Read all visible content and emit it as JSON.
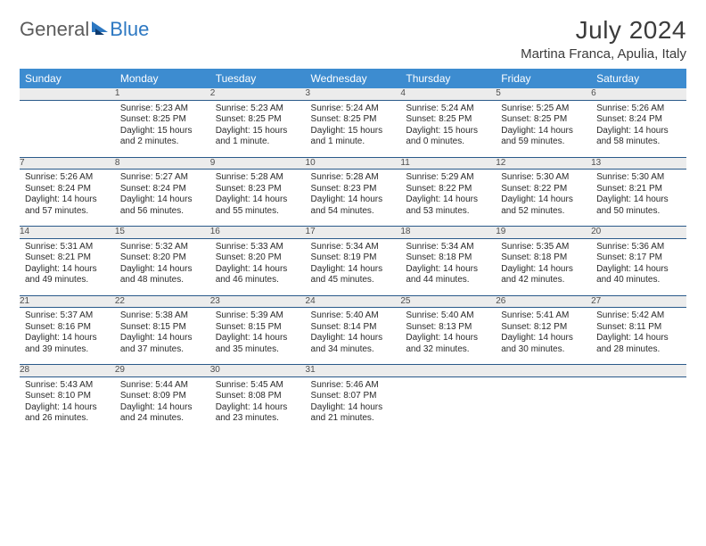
{
  "logo": {
    "word1": "General",
    "word2": "Blue"
  },
  "title": {
    "month_year": "July 2024",
    "location": "Martina Franca, Apulia, Italy"
  },
  "weekdays": [
    "Sunday",
    "Monday",
    "Tuesday",
    "Wednesday",
    "Thursday",
    "Friday",
    "Saturday"
  ],
  "style": {
    "page_bg": "#ffffff",
    "header_bg": "#3d8cd0",
    "header_text": "#ffffff",
    "daynum_bg": "#ececec",
    "daynum_text": "#4f4f4f",
    "rule_color": "#2a5a8a",
    "body_text": "#2a2a2a",
    "title_text": "#3b3b3b",
    "logo_gray": "#5c5c5c",
    "logo_blue": "#2d78c2",
    "month_fontsize_pt": 21,
    "location_fontsize_pt": 11,
    "weekday_fontsize_pt": 9,
    "cell_fontsize_pt": 7.5,
    "daynum_fontsize_pt": 8.5,
    "columns": 7,
    "rows": 5
  },
  "weeks": [
    {
      "nums": [
        "",
        "1",
        "2",
        "3",
        "4",
        "5",
        "6"
      ],
      "cells": [
        "",
        "Sunrise: 5:23 AM\nSunset: 8:25 PM\nDaylight: 15 hours and 2 minutes.",
        "Sunrise: 5:23 AM\nSunset: 8:25 PM\nDaylight: 15 hours and 1 minute.",
        "Sunrise: 5:24 AM\nSunset: 8:25 PM\nDaylight: 15 hours and 1 minute.",
        "Sunrise: 5:24 AM\nSunset: 8:25 PM\nDaylight: 15 hours and 0 minutes.",
        "Sunrise: 5:25 AM\nSunset: 8:25 PM\nDaylight: 14 hours and 59 minutes.",
        "Sunrise: 5:26 AM\nSunset: 8:24 PM\nDaylight: 14 hours and 58 minutes."
      ]
    },
    {
      "nums": [
        "7",
        "8",
        "9",
        "10",
        "11",
        "12",
        "13"
      ],
      "cells": [
        "Sunrise: 5:26 AM\nSunset: 8:24 PM\nDaylight: 14 hours and 57 minutes.",
        "Sunrise: 5:27 AM\nSunset: 8:24 PM\nDaylight: 14 hours and 56 minutes.",
        "Sunrise: 5:28 AM\nSunset: 8:23 PM\nDaylight: 14 hours and 55 minutes.",
        "Sunrise: 5:28 AM\nSunset: 8:23 PM\nDaylight: 14 hours and 54 minutes.",
        "Sunrise: 5:29 AM\nSunset: 8:22 PM\nDaylight: 14 hours and 53 minutes.",
        "Sunrise: 5:30 AM\nSunset: 8:22 PM\nDaylight: 14 hours and 52 minutes.",
        "Sunrise: 5:30 AM\nSunset: 8:21 PM\nDaylight: 14 hours and 50 minutes."
      ]
    },
    {
      "nums": [
        "14",
        "15",
        "16",
        "17",
        "18",
        "19",
        "20"
      ],
      "cells": [
        "Sunrise: 5:31 AM\nSunset: 8:21 PM\nDaylight: 14 hours and 49 minutes.",
        "Sunrise: 5:32 AM\nSunset: 8:20 PM\nDaylight: 14 hours and 48 minutes.",
        "Sunrise: 5:33 AM\nSunset: 8:20 PM\nDaylight: 14 hours and 46 minutes.",
        "Sunrise: 5:34 AM\nSunset: 8:19 PM\nDaylight: 14 hours and 45 minutes.",
        "Sunrise: 5:34 AM\nSunset: 8:18 PM\nDaylight: 14 hours and 44 minutes.",
        "Sunrise: 5:35 AM\nSunset: 8:18 PM\nDaylight: 14 hours and 42 minutes.",
        "Sunrise: 5:36 AM\nSunset: 8:17 PM\nDaylight: 14 hours and 40 minutes."
      ]
    },
    {
      "nums": [
        "21",
        "22",
        "23",
        "24",
        "25",
        "26",
        "27"
      ],
      "cells": [
        "Sunrise: 5:37 AM\nSunset: 8:16 PM\nDaylight: 14 hours and 39 minutes.",
        "Sunrise: 5:38 AM\nSunset: 8:15 PM\nDaylight: 14 hours and 37 minutes.",
        "Sunrise: 5:39 AM\nSunset: 8:15 PM\nDaylight: 14 hours and 35 minutes.",
        "Sunrise: 5:40 AM\nSunset: 8:14 PM\nDaylight: 14 hours and 34 minutes.",
        "Sunrise: 5:40 AM\nSunset: 8:13 PM\nDaylight: 14 hours and 32 minutes.",
        "Sunrise: 5:41 AM\nSunset: 8:12 PM\nDaylight: 14 hours and 30 minutes.",
        "Sunrise: 5:42 AM\nSunset: 8:11 PM\nDaylight: 14 hours and 28 minutes."
      ]
    },
    {
      "nums": [
        "28",
        "29",
        "30",
        "31",
        "",
        "",
        ""
      ],
      "cells": [
        "Sunrise: 5:43 AM\nSunset: 8:10 PM\nDaylight: 14 hours and 26 minutes.",
        "Sunrise: 5:44 AM\nSunset: 8:09 PM\nDaylight: 14 hours and 24 minutes.",
        "Sunrise: 5:45 AM\nSunset: 8:08 PM\nDaylight: 14 hours and 23 minutes.",
        "Sunrise: 5:46 AM\nSunset: 8:07 PM\nDaylight: 14 hours and 21 minutes.",
        "",
        "",
        ""
      ]
    }
  ]
}
